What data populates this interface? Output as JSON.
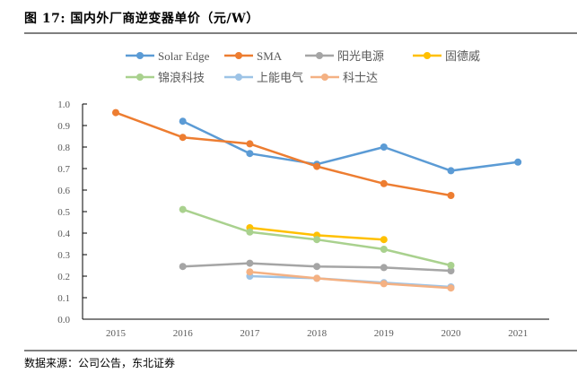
{
  "figure": {
    "title": "图 17: 国内外厂商逆变器单价（元/W）",
    "source": "数据来源：公司公告，东北证券"
  },
  "chart_data": {
    "type": "line",
    "title": "国内外厂商逆变器单价（元/W）",
    "xlabel": "",
    "ylabel": "",
    "categories": [
      "2015",
      "2016",
      "2017",
      "2018",
      "2019",
      "2020",
      "2021"
    ],
    "ylim": [
      0,
      1.0
    ],
    "yticks": [
      0.0,
      0.1,
      0.2,
      0.3,
      0.4,
      0.5,
      0.6,
      0.7,
      0.8,
      0.9,
      1.0
    ],
    "ytick_labels": [
      "0.0",
      "0.1",
      "0.2",
      "0.3",
      "0.4",
      "0.5",
      "0.6",
      "0.7",
      "0.8",
      "0.9",
      "1.0"
    ],
    "grid": false,
    "legend_position": "top",
    "series": [
      {
        "name": "Solar Edge",
        "color": "#5b9bd5",
        "values": [
          null,
          0.92,
          0.77,
          0.72,
          0.8,
          0.69,
          0.73
        ]
      },
      {
        "name": "SMA",
        "color": "#ed7d31",
        "values": [
          0.96,
          0.845,
          0.815,
          0.71,
          0.63,
          0.575,
          null
        ]
      },
      {
        "name": "阳光电源",
        "color": "#a5a5a5",
        "values": [
          null,
          0.245,
          0.26,
          0.245,
          0.24,
          0.225,
          null
        ]
      },
      {
        "name": "固德威",
        "color": "#ffc000",
        "values": [
          null,
          null,
          0.425,
          0.39,
          0.37,
          null,
          null
        ]
      },
      {
        "name": "锦浪科技",
        "color": "#a9d18e",
        "values": [
          null,
          0.51,
          0.405,
          0.37,
          0.325,
          0.25,
          null
        ]
      },
      {
        "name": "上能电气",
        "color": "#9dc3e6",
        "values": [
          null,
          null,
          0.2,
          0.19,
          0.17,
          0.15,
          null
        ]
      },
      {
        "name": "科士达",
        "color": "#f4b183",
        "values": [
          null,
          null,
          0.22,
          0.19,
          0.165,
          0.145,
          null
        ]
      }
    ]
  }
}
